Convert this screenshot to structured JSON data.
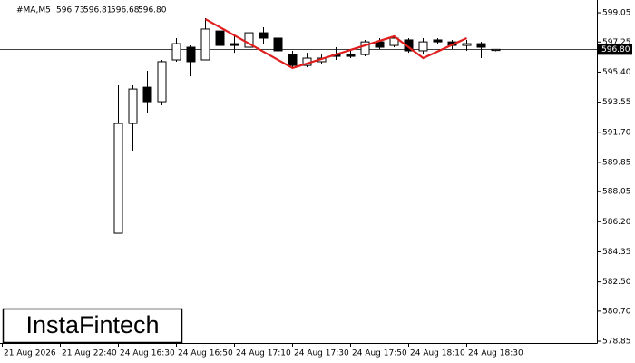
{
  "chart_data": {
    "type": "candlestick",
    "header": {
      "symbol": "#MA,M5",
      "ohlc": [
        "596.73",
        "596.81",
        "596.68",
        "596.80"
      ]
    },
    "watermark": "InstaFintech",
    "categories": [
      "21 Aug 2026",
      null,
      null,
      null,
      "21 Aug 22:40",
      null,
      null,
      null,
      "24 Aug 16:30",
      null,
      null,
      null,
      "24 Aug 16:50",
      null,
      null,
      null,
      "24 Aug 17:10",
      null,
      null,
      null,
      "24 Aug 17:30",
      null,
      null,
      null,
      "24 Aug 17:50",
      null,
      null,
      null,
      "24 Aug 18:10",
      null,
      null,
      null,
      "24 Aug 18:30",
      null,
      null
    ],
    "open": [
      null,
      null,
      null,
      null,
      null,
      null,
      null,
      null,
      585.49,
      592.24,
      594.47,
      593.58,
      596.15,
      596.93,
      596.15,
      597.93,
      597.15,
      596.93,
      597.82,
      597.49,
      596.48,
      595.81,
      596.04,
      596.48,
      596.48,
      596.48,
      597.26,
      597.04,
      597.38,
      596.71,
      597.38,
      597.26,
      597.04,
      597.15,
      596.73
    ],
    "high": [
      null,
      null,
      null,
      null,
      null,
      null,
      null,
      null,
      594.59,
      594.59,
      595.48,
      596.15,
      597.49,
      597.04,
      598.72,
      598.27,
      597.71,
      598.05,
      598.16,
      597.71,
      596.71,
      596.59,
      596.48,
      596.93,
      596.71,
      597.38,
      597.49,
      597.6,
      597.49,
      597.49,
      597.49,
      597.38,
      597.38,
      597.26,
      596.81
    ],
    "low": [
      null,
      null,
      null,
      null,
      null,
      null,
      null,
      null,
      585.49,
      590.57,
      592.91,
      593.36,
      596.04,
      595.14,
      596.15,
      596.37,
      596.59,
      596.37,
      597.15,
      596.37,
      595.7,
      595.7,
      595.93,
      596.15,
      596.26,
      596.37,
      596.82,
      596.93,
      596.59,
      596.48,
      597.15,
      596.82,
      596.71,
      596.26,
      596.68
    ],
    "close": [
      null,
      null,
      null,
      null,
      null,
      null,
      null,
      null,
      592.24,
      594.36,
      593.58,
      596.04,
      597.15,
      596.04,
      598.05,
      597.04,
      597.04,
      597.82,
      597.49,
      596.71,
      595.81,
      596.26,
      596.26,
      596.37,
      596.37,
      597.26,
      596.93,
      597.49,
      596.71,
      597.26,
      597.26,
      597.04,
      597.15,
      596.93,
      596.8
    ],
    "up_color": "#ffffff",
    "down_color": "#000000",
    "pattern": {
      "color": "#e01e1e",
      "x": [
        14,
        20,
        27,
        29,
        32
      ],
      "values": [
        598.66,
        595.65,
        597.6,
        596.26,
        597.49
      ]
    },
    "price_line": {
      "value": 596.8,
      "label": "596.80"
    },
    "ylim": [
      578.74,
      599.61
    ],
    "yticks": [
      599.05,
      597.25,
      {
        "value": 595.4,
        "label": "595.40"
      },
      593.55,
      {
        "value": 591.7,
        "label": "591.70"
      },
      589.85,
      588.05,
      {
        "value": 586.2,
        "label": "586.20"
      },
      584.35,
      {
        "value": 582.5,
        "label": "582.50"
      },
      {
        "value": 580.7,
        "label": "580.70"
      },
      578.85
    ]
  }
}
